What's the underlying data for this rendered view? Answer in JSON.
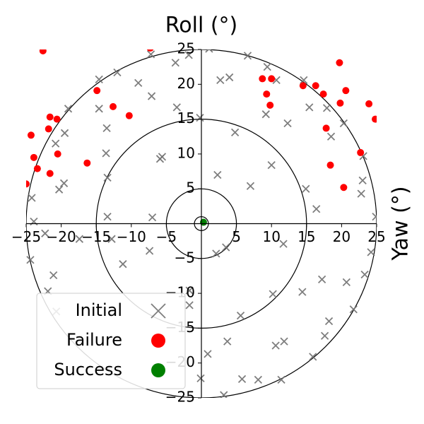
{
  "chart_data": {
    "type": "scatter",
    "title": "Roll (°)",
    "ylabel": "Yaw (°)",
    "xlim": [
      -25,
      25
    ],
    "ylim": [
      -25,
      25
    ],
    "xticks": [
      {
        "value": -25,
        "label": "−25"
      },
      {
        "value": -20,
        "label": "−20"
      },
      {
        "value": -15,
        "label": "−15"
      },
      {
        "value": -10,
        "label": "−10"
      },
      {
        "value": -5,
        "label": "−5"
      },
      5,
      10,
      15,
      20,
      25
    ],
    "yticks": [
      {
        "value": -25,
        "label": "−25"
      },
      {
        "value": -20,
        "label": "−20"
      },
      {
        "value": -15,
        "label": "−15"
      },
      {
        "value": -10,
        "label": "−10"
      },
      {
        "value": -5,
        "label": "−5"
      },
      5,
      10,
      15,
      20,
      25
    ],
    "circle_radii": [
      1,
      5,
      15,
      25
    ],
    "legend": "lower left",
    "series": [
      {
        "name": "Initial",
        "color": "#707070",
        "marker": "x",
        "x": [
          -24.2,
          -23.9,
          -22.3,
          -24.4,
          -21.1,
          -21.9,
          -20.7,
          -17.4,
          -20.3,
          -19.6,
          -19.5,
          -20.8,
          -19.0,
          -14.6,
          -12.0,
          -9.0,
          -7.1,
          -3.7,
          -1.8,
          -7.2,
          -13.5,
          -13.6,
          -13.4,
          -14.6,
          -3.5,
          -5.9,
          -5.6,
          -13.4,
          -7.0,
          -7.4,
          -11.2,
          -12.8,
          -1.7,
          -1.7,
          0.9,
          -0.1,
          3.2,
          3.7,
          5.8,
          8.1,
          5.6,
          3.5,
          2.1,
          11.4,
          10.6,
          11.8,
          10.2,
          11.7,
          14.4,
          15.9,
          17.6,
          18.2,
          17.2,
          20.7,
          21.7,
          23.3,
          24.2,
          22.8,
          23.0,
          14.9,
          16.4,
          24.9,
          20.3,
          18.5,
          17.9,
          15.4,
          14.6,
          10.7,
          12.3,
          9.2,
          10.0,
          7.0,
          4.8,
          2.7,
          4.0,
          6.6,
          9.4,
          2.3,
          1.1,
          -0.2,
          23.1
        ],
        "y": [
          3.7,
          0.3,
          -1.4,
          -5.2,
          -7.4,
          -9.7,
          -12.6,
          -2.2,
          4.9,
          5.8,
          13.0,
          11.5,
          16.5,
          20.7,
          21.7,
          20.2,
          18.3,
          23.1,
          24.2,
          24.3,
          13.7,
          10.1,
          6.6,
          16.5,
          16.7,
          9.3,
          9.6,
          1.0,
          0.9,
          -3.9,
          -5.8,
          -2.2,
          -9.6,
          -11.7,
          -18.7,
          -22.2,
          -24.6,
          -16.9,
          -22.3,
          -22.4,
          -13.2,
          -3.4,
          -4.3,
          -22.4,
          -17.5,
          -16.9,
          -10.1,
          -2.9,
          -9.8,
          -19.1,
          -16.1,
          -14.0,
          -8.0,
          -8.4,
          -12.3,
          -7.3,
          -4.1,
          4.3,
          6.2,
          5.0,
          2.1,
          1.0,
          14.4,
          12.5,
          16.6,
          16.7,
          20.6,
          20.6,
          14.4,
          15.7,
          8.4,
          5.4,
          13.1,
          20.6,
          21.0,
          24.1,
          22.5,
          7.0,
          25.1,
          15.2,
          9.7
        ]
      },
      {
        "name": "Failure",
        "color": "#ff0000",
        "marker": "o",
        "x": [
          -22.6,
          -7.3,
          -14.9,
          -12.6,
          -10.3,
          -21.6,
          -20.6,
          -21.8,
          -24.3,
          -20.5,
          -23.9,
          -23.4,
          -21.6,
          -16.3,
          -25.0,
          8.7,
          10.0,
          9.3,
          9.8,
          14.5,
          16.3,
          17.4,
          19.7,
          20.6,
          19.8,
          23.9,
          24.8,
          17.8,
          18.4,
          22.7,
          20.3
        ],
        "y": [
          24.8,
          25.2,
          19.1,
          16.8,
          15.5,
          15.3,
          15.0,
          13.6,
          12.7,
          10.0,
          9.5,
          7.9,
          7.2,
          8.7,
          5.7,
          20.8,
          20.8,
          18.6,
          17.0,
          19.8,
          19.8,
          18.6,
          23.1,
          19.1,
          17.3,
          17.2,
          15.0,
          13.7,
          8.4,
          10.2,
          5.2
        ]
      },
      {
        "name": "Success",
        "color": "#008000",
        "marker": "o",
        "x": [
          0.3
        ],
        "y": [
          0.2
        ]
      }
    ]
  }
}
